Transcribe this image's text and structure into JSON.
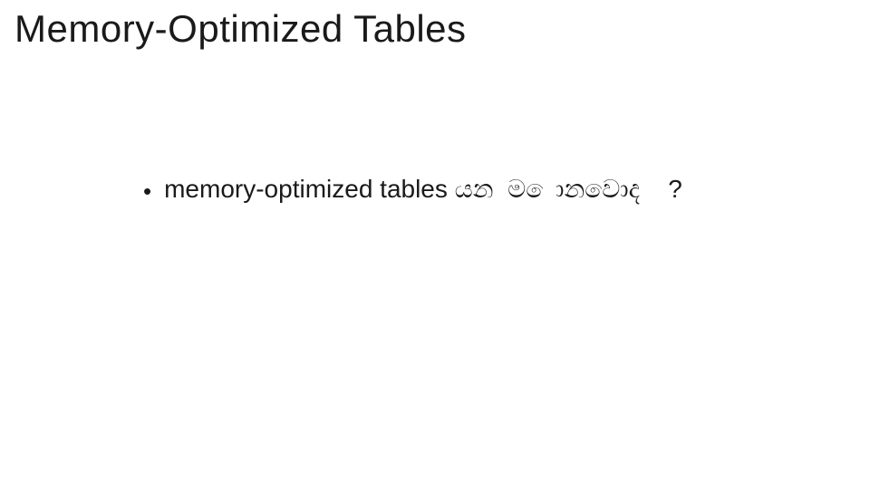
{
  "slide": {
    "title": "Memory-Optimized Tables",
    "title_fontsize": 42,
    "title_fontweight": 300,
    "title_color": "#1a1a1a",
    "background_color": "#ffffff",
    "bullets": [
      {
        "marker": "•",
        "text": "memory-optimized tables යන  ම ොනවොද    ?",
        "fontsize": 28,
        "fontweight": 300,
        "color": "#1a1a1a"
      }
    ]
  }
}
